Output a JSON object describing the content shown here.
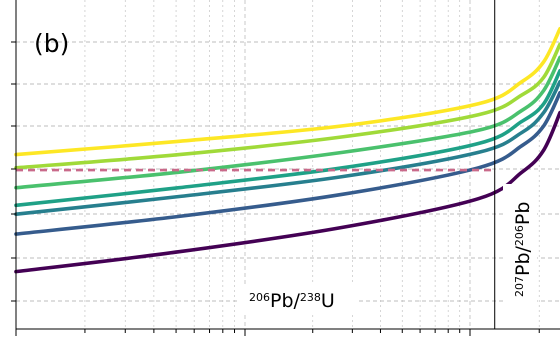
{
  "chart_data": {
    "type": "line",
    "panel_label": "(b)",
    "xlabel": {
      "parts": [
        {
          "text": "206",
          "sup": true
        },
        {
          "text": "Pb/",
          "sup": false
        },
        {
          "text": "238",
          "sup": true
        },
        {
          "text": "U",
          "sup": false
        }
      ]
    },
    "right_label": {
      "parts": [
        {
          "text": "207",
          "sup": true
        },
        {
          "text": "Pb/",
          "sup": false
        },
        {
          "text": "206",
          "sup": true
        },
        {
          "text": "Pb",
          "sup": false
        }
      ]
    },
    "grid": true,
    "x_scale": "log",
    "series": [
      {
        "color": "#fde725",
        "values": [
          {
            "x": 0.0,
            "y": 5.45
          },
          {
            "x": 0.3,
            "y": 5.75
          },
          {
            "x": 0.6,
            "y": 6.1
          },
          {
            "x": 0.85,
            "y": 6.6
          },
          {
            "x": 0.93,
            "y": 7.1
          },
          {
            "x": 0.97,
            "y": 7.55
          },
          {
            "x": 1.0,
            "y": 8.3
          }
        ]
      },
      {
        "color": "#a0da39",
        "values": [
          {
            "x": 0.0,
            "y": 5.15
          },
          {
            "x": 0.3,
            "y": 5.45
          },
          {
            "x": 0.6,
            "y": 5.85
          },
          {
            "x": 0.85,
            "y": 6.35
          },
          {
            "x": 0.93,
            "y": 6.8
          },
          {
            "x": 0.97,
            "y": 7.2
          },
          {
            "x": 1.0,
            "y": 7.95
          }
        ]
      },
      {
        "color": "#4ac16d",
        "values": [
          {
            "x": 0.0,
            "y": 4.7
          },
          {
            "x": 0.3,
            "y": 5.05
          },
          {
            "x": 0.6,
            "y": 5.5
          },
          {
            "x": 0.85,
            "y": 6.0
          },
          {
            "x": 0.93,
            "y": 6.45
          },
          {
            "x": 0.97,
            "y": 6.9
          },
          {
            "x": 1.0,
            "y": 7.65
          }
        ]
      },
      {
        "color": "#1fa187",
        "values": [
          {
            "x": 0.0,
            "y": 4.3
          },
          {
            "x": 0.3,
            "y": 4.7
          },
          {
            "x": 0.6,
            "y": 5.15
          },
          {
            "x": 0.85,
            "y": 5.7
          },
          {
            "x": 0.93,
            "y": 6.2
          },
          {
            "x": 0.97,
            "y": 6.6
          },
          {
            "x": 1.0,
            "y": 7.35
          }
        ]
      },
      {
        "color": "#277f8e",
        "values": [
          {
            "x": 0.0,
            "y": 4.1
          },
          {
            "x": 0.3,
            "y": 4.5
          },
          {
            "x": 0.6,
            "y": 4.95
          },
          {
            "x": 0.85,
            "y": 5.5
          },
          {
            "x": 0.93,
            "y": 5.95
          },
          {
            "x": 0.97,
            "y": 6.4
          },
          {
            "x": 1.0,
            "y": 7.1
          }
        ]
      },
      {
        "color": "#365c8d",
        "values": [
          {
            "x": 0.0,
            "y": 3.65
          },
          {
            "x": 0.3,
            "y": 4.05
          },
          {
            "x": 0.6,
            "y": 4.55
          },
          {
            "x": 0.85,
            "y": 5.15
          },
          {
            "x": 0.93,
            "y": 5.65
          },
          {
            "x": 0.97,
            "y": 6.1
          },
          {
            "x": 1.0,
            "y": 6.85
          }
        ]
      },
      {
        "color": "#440154",
        "values": [
          {
            "x": 0.0,
            "y": 2.8
          },
          {
            "x": 0.3,
            "y": 3.25
          },
          {
            "x": 0.6,
            "y": 3.8
          },
          {
            "x": 0.85,
            "y": 4.45
          },
          {
            "x": 0.93,
            "y": 5.05
          },
          {
            "x": 0.97,
            "y": 5.55
          },
          {
            "x": 1.0,
            "y": 6.4
          }
        ]
      }
    ],
    "reference_line": {
      "color": "#c96a8a",
      "style": "dashed",
      "x_start": 0.0,
      "x_end": 0.88,
      "y": 5.1
    },
    "divider_x": 0.88
  }
}
